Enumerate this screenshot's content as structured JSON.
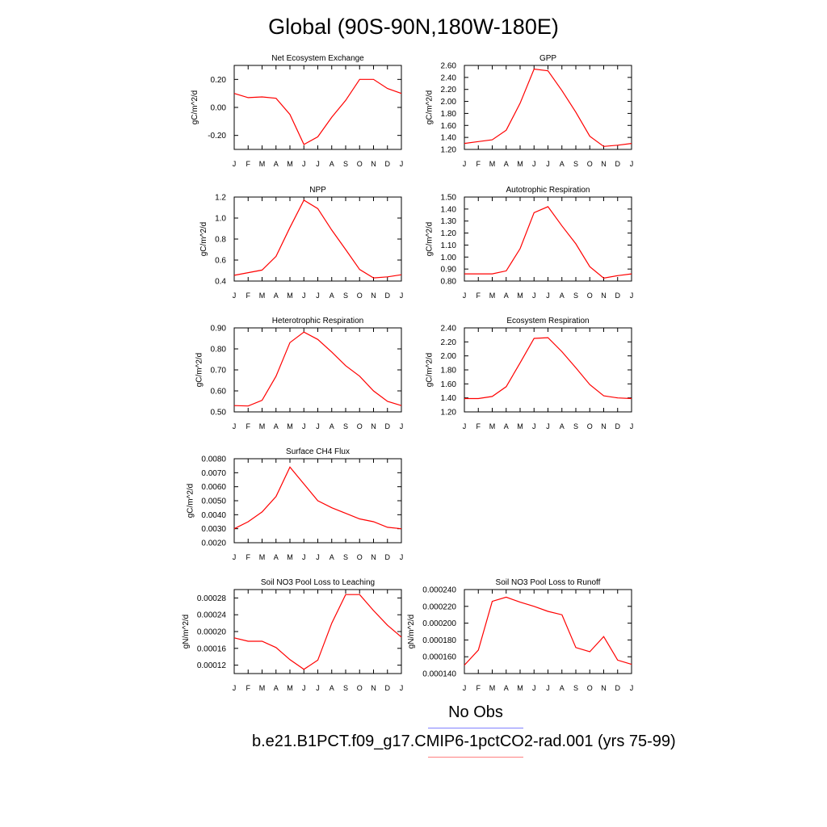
{
  "figure": {
    "title": "Global (90S-90N,180W-180E)",
    "legend": {
      "obs_label": "No Obs",
      "obs_color": "#8080ff",
      "case_label": "b.e21.B1PCT.f09_g17.CMIP6-1pctCO2-rad.001 (yrs 75-99)",
      "case_color": "#ff8080"
    },
    "line_color": "#ff0000"
  },
  "chart_data": [
    {
      "type": "line",
      "title": "Net Ecosystem Exchange",
      "ylabel": "gC/m^2/d",
      "categories": [
        "J",
        "F",
        "M",
        "A",
        "M",
        "J",
        "J",
        "A",
        "S",
        "O",
        "N",
        "D",
        "J"
      ],
      "series": [
        {
          "values": [
            0.1,
            0.07,
            0.075,
            0.065,
            -0.05,
            -0.265,
            -0.21,
            -0.07,
            0.05,
            0.2,
            0.2,
            0.135,
            0.1
          ]
        }
      ],
      "ylim": [
        -0.3,
        0.3
      ],
      "yticks": [
        -0.2,
        0.0,
        0.2
      ],
      "yticklabels": [
        "-0.20",
        "0.00",
        "0.20"
      ]
    },
    {
      "type": "line",
      "title": "GPP",
      "ylabel": "gC/m^2/d",
      "categories": [
        "J",
        "F",
        "M",
        "A",
        "M",
        "J",
        "J",
        "A",
        "S",
        "O",
        "N",
        "D",
        "J"
      ],
      "series": [
        {
          "values": [
            1.3,
            1.33,
            1.36,
            1.52,
            1.97,
            2.54,
            2.51,
            2.18,
            1.82,
            1.42,
            1.25,
            1.27,
            1.3
          ]
        }
      ],
      "ylim": [
        1.2,
        2.6
      ],
      "yticks": [
        1.2,
        1.4,
        1.6,
        1.8,
        2.0,
        2.2,
        2.4,
        2.6
      ],
      "yticklabels": [
        "1.20",
        "1.40",
        "1.60",
        "1.80",
        "2.00",
        "2.20",
        "2.40",
        "2.60"
      ]
    },
    {
      "type": "line",
      "title": "NPP",
      "ylabel": "gC/m^2/d",
      "categories": [
        "J",
        "F",
        "M",
        "A",
        "M",
        "J",
        "J",
        "A",
        "S",
        "O",
        "N",
        "D",
        "J"
      ],
      "series": [
        {
          "values": [
            0.455,
            0.48,
            0.505,
            0.635,
            0.91,
            1.17,
            1.09,
            0.885,
            0.7,
            0.51,
            0.43,
            0.44,
            0.46
          ]
        }
      ],
      "ylim": [
        0.4,
        1.2
      ],
      "yticks": [
        0.4,
        0.6,
        0.8,
        1.0,
        1.2
      ],
      "yticklabels": [
        "0.4",
        "0.6",
        "0.8",
        "1.0",
        "1.2"
      ]
    },
    {
      "type": "line",
      "title": "Autotrophic Respiration",
      "ylabel": "gC/m^2/d",
      "categories": [
        "J",
        "F",
        "M",
        "A",
        "M",
        "J",
        "J",
        "A",
        "S",
        "O",
        "N",
        "D",
        "J"
      ],
      "series": [
        {
          "values": [
            0.86,
            0.86,
            0.86,
            0.885,
            1.07,
            1.37,
            1.42,
            1.26,
            1.11,
            0.92,
            0.825,
            0.845,
            0.86
          ]
        }
      ],
      "ylim": [
        0.8,
        1.5
      ],
      "yticks": [
        0.8,
        0.9,
        1.0,
        1.1,
        1.2,
        1.3,
        1.4,
        1.5
      ],
      "yticklabels": [
        "0.80",
        "0.90",
        "1.00",
        "1.10",
        "1.20",
        "1.30",
        "1.40",
        "1.50"
      ]
    },
    {
      "type": "line",
      "title": "Heterotrophic Respiration",
      "ylabel": "gC/m^2/d",
      "categories": [
        "J",
        "F",
        "M",
        "A",
        "M",
        "J",
        "J",
        "A",
        "S",
        "O",
        "N",
        "D",
        "J"
      ],
      "series": [
        {
          "values": [
            0.53,
            0.528,
            0.555,
            0.67,
            0.83,
            0.88,
            0.845,
            0.785,
            0.72,
            0.67,
            0.6,
            0.55,
            0.53
          ]
        }
      ],
      "ylim": [
        0.5,
        0.9
      ],
      "yticks": [
        0.5,
        0.6,
        0.7,
        0.8,
        0.9
      ],
      "yticklabels": [
        "0.50",
        "0.60",
        "0.70",
        "0.80",
        "0.90"
      ]
    },
    {
      "type": "line",
      "title": "Ecosystem Respiration",
      "ylabel": "gC/m^2/d",
      "categories": [
        "J",
        "F",
        "M",
        "A",
        "M",
        "J",
        "J",
        "A",
        "S",
        "O",
        "N",
        "D",
        "J"
      ],
      "series": [
        {
          "values": [
            1.39,
            1.39,
            1.42,
            1.56,
            1.9,
            2.25,
            2.26,
            2.06,
            1.83,
            1.59,
            1.43,
            1.4,
            1.39
          ]
        }
      ],
      "ylim": [
        1.2,
        2.4
      ],
      "yticks": [
        1.2,
        1.4,
        1.6,
        1.8,
        2.0,
        2.2,
        2.4
      ],
      "yticklabels": [
        "1.20",
        "1.40",
        "1.60",
        "1.80",
        "2.00",
        "2.20",
        "2.40"
      ]
    },
    {
      "type": "line",
      "title": "Surface CH4 Flux",
      "ylabel": "gC/m^2/d",
      "categories": [
        "J",
        "F",
        "M",
        "A",
        "M",
        "J",
        "J",
        "A",
        "S",
        "O",
        "N",
        "D",
        "J"
      ],
      "series": [
        {
          "values": [
            0.003,
            0.0035,
            0.0042,
            0.0053,
            0.0074,
            0.0062,
            0.005,
            0.0045,
            0.0041,
            0.0037,
            0.0035,
            0.0031,
            0.003
          ]
        }
      ],
      "ylim": [
        0.002,
        0.008
      ],
      "yticks": [
        0.002,
        0.003,
        0.004,
        0.005,
        0.006,
        0.007,
        0.008
      ],
      "yticklabels": [
        "0.0020",
        "0.0030",
        "0.0040",
        "0.0050",
        "0.0060",
        "0.0070",
        "0.0080"
      ]
    },
    {
      "type": "line",
      "title": "Soil NO3 Pool Loss to Leaching",
      "ylabel": "gN/m^2/d",
      "categories": [
        "J",
        "F",
        "M",
        "A",
        "M",
        "J",
        "J",
        "A",
        "S",
        "O",
        "N",
        "D",
        "J"
      ],
      "series": [
        {
          "values": [
            0.000185,
            0.000177,
            0.000177,
            0.000162,
            0.000133,
            0.00011,
            0.000132,
            0.00022,
            0.000288,
            0.000288,
            0.00025,
            0.000215,
            0.000187
          ]
        }
      ],
      "ylim": [
        0.0001,
        0.0003
      ],
      "yticks": [
        0.00012,
        0.00016,
        0.0002,
        0.00024,
        0.00028
      ],
      "yticklabels": [
        "0.00012",
        "0.00016",
        "0.00020",
        "0.00024",
        "0.00028"
      ]
    },
    {
      "type": "line",
      "title": "Soil NO3 Pool Loss to Runoff",
      "ylabel": "gN/m^2/d",
      "categories": [
        "J",
        "F",
        "M",
        "A",
        "M",
        "J",
        "J",
        "A",
        "S",
        "O",
        "N",
        "D",
        "J"
      ],
      "series": [
        {
          "values": [
            0.00015,
            0.000168,
            0.000226,
            0.000231,
            0.000225,
            0.00022,
            0.000214,
            0.00021,
            0.000171,
            0.000166,
            0.000184,
            0.000156,
            0.000151
          ]
        }
      ],
      "ylim": [
        0.00014,
        0.00024
      ],
      "yticks": [
        0.00014,
        0.00016,
        0.00018,
        0.0002,
        0.00022,
        0.00024
      ],
      "yticklabels": [
        "0.000140",
        "0.000160",
        "0.000180",
        "0.000200",
        "0.000220",
        "0.000240"
      ]
    }
  ]
}
